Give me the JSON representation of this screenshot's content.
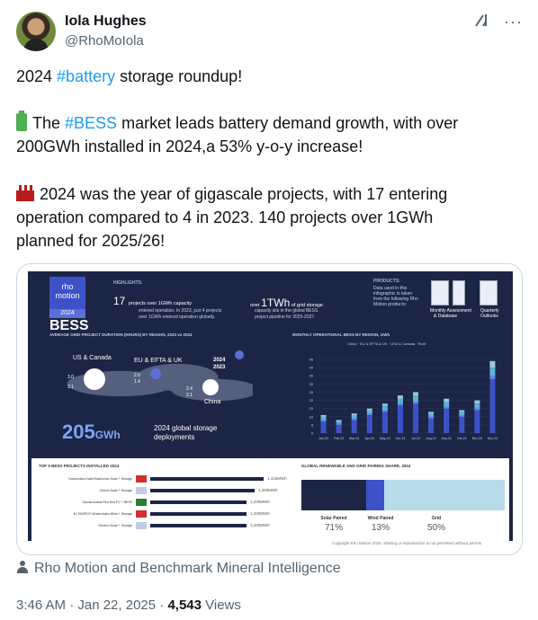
{
  "author": {
    "name": "Iola Hughes",
    "handle": "@RhoMoIola"
  },
  "tweet": {
    "line1_prefix": "2024 ",
    "line1_tag": "#battery",
    "line1_suffix": " storage roundup!",
    "p2_prefix": "The ",
    "p2_tag": "#BESS",
    "p2_text1": " market leads battery demand growth, with over",
    "p2_text2": "200GWh installed in 2024,a 53% y-o-y increase!",
    "p3_line1": "2024 was the year of gigascale projects, with 17 entering",
    "p3_line2": "operation compared to 4 in 2023. 140 projects over 1GWh",
    "p3_line3": "planned for 2025/26!"
  },
  "infographic": {
    "logo_text": "rho motion",
    "year": "2024",
    "title": "BESS",
    "highlights_label": "HIGHLIGHTS:",
    "stat1_num": "17",
    "stat1_text": "projects over 1GWh capacity",
    "stat1_sub1": "entered operation. In 2023, just 4 projects",
    "stat1_sub2": "over 1GWh entered operation globally.",
    "stat2_pre": "over ",
    "stat2_num": "1TWh",
    "stat2_text": " of grid storage",
    "stat2_sub1": "capacity sits in the global BESS",
    "stat2_sub2": "project pipeline for 2025-2027.",
    "products_label": "PRODUCTS:",
    "products_sub1": "Data used in this",
    "products_sub2": "infographic is taken",
    "products_sub3": "from the following Rho",
    "products_sub4": "Motion products:",
    "prod1": "Monthly Assessment",
    "prod1b": "& Database",
    "prod2": "Quarterly",
    "prod2b": "Outlooks",
    "map_title": "AVERAGE GRID PROJECT DURATION (HOURS) BY REGION, 2023 vs 2024",
    "region_us": "US & Canada",
    "region_eu": "EU & EFTA & UK",
    "region_cn": "China",
    "us_2024": "3.0",
    "us_2023": "3.1",
    "eu_2024": "2.0",
    "eu_2023": "1.4",
    "cn_2024": "2.4",
    "cn_2023": "2.1",
    "legend_2024": "2024",
    "legend_2023": "2023",
    "total_num": "205",
    "total_unit": "GWh",
    "total_text1": "2024 global storage",
    "total_text2": "deployments",
    "chart_title": "MONTHLY OPERATIONAL BESS BY REGION, GWh",
    "legend": [
      "China",
      "EU & EFTA & UK",
      "USA & Canada",
      "RoW"
    ],
    "top5_title": "TOP 5 BESS PROJECTS INSTALLED 2024",
    "top5": [
      {
        "name": "Yueshuidian Kashi Bachuxian Solar + Storage",
        "value": "1,416MWh",
        "frac": 1.0
      },
      {
        "name": "Gemini Solar + Storage",
        "value": "1,300MWh",
        "frac": 0.92
      },
      {
        "name": "Saudia Arabia Red Sea PV + BESS",
        "value": "1,200MWh",
        "frac": 0.85
      },
      {
        "name": "BJ ENERGY Wulanchabu Wind + Storage",
        "value": "1,200MWh",
        "frac": 0.85
      },
      {
        "name": "Rexford Solar + Storage",
        "value": "1,200MWh",
        "frac": 0.85
      }
    ],
    "share_title": "GLOBAL RENEWABLE AND GRID PAIRING SHARE, 2024",
    "share_solar_label": "Solar Paired",
    "share_solar_pct": "71%",
    "share_wind_label": "Wind Paired",
    "share_wind_pct": "13%",
    "share_grid_label": "Grid",
    "share_grid_pct": "50%",
    "copyright": "Copyright Rho Motion 2025, sharing or reproduction is not permitted without permis"
  },
  "source": "Rho Motion and Benchmark Mineral Intelligence",
  "meta": {
    "time": "3:46 AM · Jan 22, 2025 · ",
    "views_num": "4,543",
    "views_label": " Views"
  },
  "chart_data": {
    "type": "bar",
    "title": "MONTHLY OPERATIONAL BESS BY REGION, GWh",
    "categories": [
      "Jan-24",
      "Feb-24",
      "Mar-24",
      "Apr-24",
      "May-24",
      "Jun-24",
      "Jul-24",
      "Aug-24",
      "Sep-24",
      "Oct-24",
      "Nov-24",
      "Dec-24"
    ],
    "ylim": [
      0,
      45
    ],
    "series": [
      {
        "name": "China",
        "values": [
          7,
          5,
          8,
          11,
          13,
          17,
          18,
          9,
          15,
          10,
          14,
          33
        ]
      },
      {
        "name": "EU & EFTA & UK",
        "values": [
          1,
          1,
          1,
          1,
          1,
          1,
          1,
          1,
          1,
          1,
          1,
          2
        ]
      },
      {
        "name": "USA & Canada",
        "values": [
          2,
          1,
          2,
          2,
          3,
          3,
          4,
          2,
          3,
          2,
          3,
          5
        ]
      },
      {
        "name": "RoW",
        "values": [
          1,
          1,
          1,
          1,
          1,
          2,
          2,
          1,
          2,
          1,
          2,
          4
        ]
      }
    ],
    "colors": [
      "#3d52c9",
      "#6f86e8",
      "#5ab4d8",
      "#9bc7e0"
    ]
  }
}
